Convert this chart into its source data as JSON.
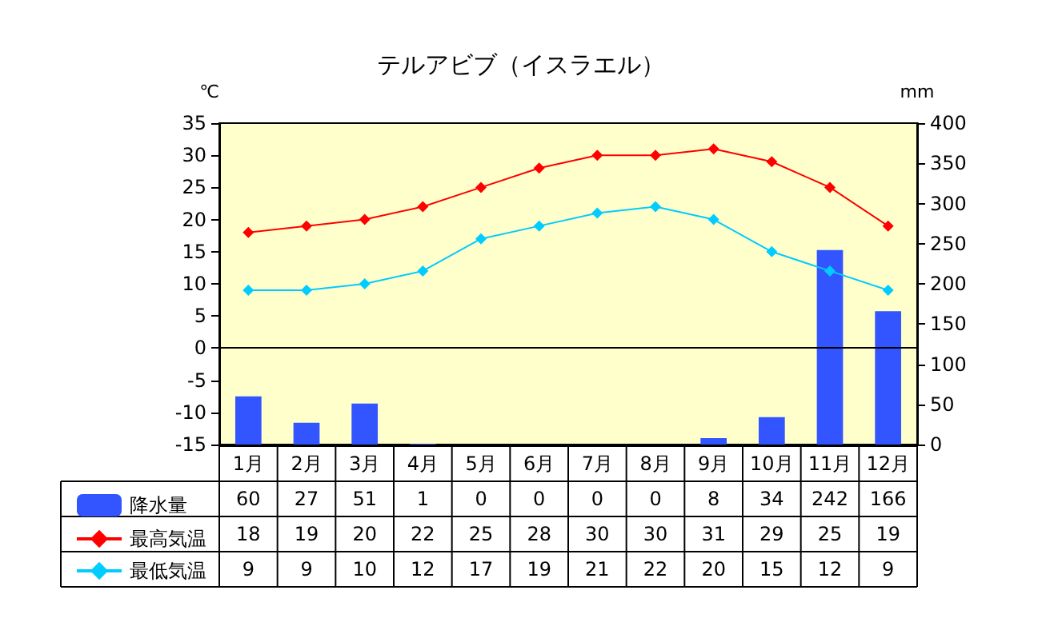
{
  "chart_data": {
    "type": "bar",
    "title": "テルアビブ（イスラエル）",
    "ylabel": "℃",
    "y2label": "mm",
    "categories": [
      "1月",
      "2月",
      "3月",
      "4月",
      "5月",
      "6月",
      "7月",
      "8月",
      "9月",
      "10月",
      "11月",
      "12月"
    ],
    "series": [
      {
        "name": "降水量",
        "axis": "y2",
        "color": "#3355ff",
        "values": [
          60,
          27,
          51,
          1,
          0,
          0,
          0,
          0,
          8,
          34,
          242,
          166
        ]
      },
      {
        "name": "最高気温",
        "type": "line",
        "color": "#ff0000",
        "values": [
          18,
          19,
          20,
          22,
          25,
          28,
          30,
          30,
          31,
          29,
          25,
          19
        ]
      },
      {
        "name": "最低気温",
        "type": "line",
        "color": "#00ccff",
        "values": [
          9,
          9,
          10,
          12,
          17,
          19,
          21,
          22,
          20,
          15,
          12,
          9
        ]
      }
    ],
    "ylim": [
      -15,
      35
    ],
    "yticks": [
      -15,
      -10,
      -5,
      0,
      5,
      10,
      15,
      20,
      25,
      30,
      35
    ],
    "y2lim": [
      0,
      400
    ],
    "y2ticks": [
      0,
      50,
      100,
      150,
      200,
      250,
      300,
      350,
      400
    ],
    "ref_lines": [
      {
        "axis": "y",
        "value": 0,
        "color": "#000000"
      }
    ],
    "marker": "diamond",
    "grid": false,
    "legend": "bottom left",
    "data_labels": true
  }
}
